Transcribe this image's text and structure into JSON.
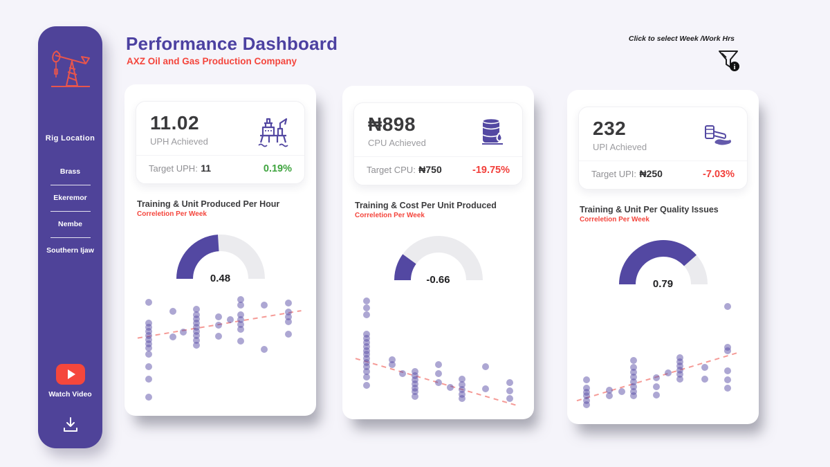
{
  "header": {
    "title": "Performance Dashboard",
    "subtitle": "AXZ Oil and Gas Production Company",
    "filter_hint": "Click to select Week /Work Hrs"
  },
  "sidebar": {
    "section_label": "Rig  Location",
    "items": [
      {
        "label": "Brass"
      },
      {
        "label": "Ekeremor"
      },
      {
        "label": "Nembe"
      },
      {
        "label": "Southern Ijaw"
      }
    ],
    "watch_video_label": "Watch Video"
  },
  "colors": {
    "sidebar_purple": "#4F4399",
    "title_purple": "#4C41A1",
    "accent_red": "#F4453C",
    "gauge_purple": "#5348A2",
    "gauge_track": "#EBEBEE",
    "green": "#3FA43F",
    "delta_red": "#F23F3A",
    "dot_purple": "rgba(91,80,168,0.5)",
    "trend_pink": "#F59A96"
  },
  "cards": [
    {
      "value": "11.02",
      "value_label": "UPH Achieved",
      "icon": "oil-platform-icon",
      "target_label": "Target UPH:",
      "target_value": "11",
      "delta": "0.19%",
      "delta_color": "#3FA43F"
    },
    {
      "value": "₦898",
      "value_label": "CPU Achieved",
      "icon": "oil-barrel-drop-icon",
      "target_label": "Target CPU:",
      "target_value": "₦750",
      "delta": "-19.75%",
      "delta_color": "#F23F3A"
    },
    {
      "value": "232",
      "value_label": "UPI Achieved",
      "icon": "oil-spill-barrel-icon",
      "target_label": "Target UPI:",
      "target_value": "₦250",
      "delta": "-7.03%",
      "delta_color": "#F23F3A"
    }
  ],
  "chart_data": [
    {
      "type": "scatter",
      "title": "Training & Unit Produced Per Hour",
      "subtitle": "Correletion Per Week",
      "gauge": {
        "correlation": 0.48,
        "label": "0.48",
        "fill_fraction": 0.48,
        "range": [
          -1,
          1
        ]
      },
      "xlabel": "",
      "ylabel": "",
      "axes_hidden": true,
      "trend_direction": "rising",
      "trend_pct": [
        [
          2,
          37
        ],
        [
          97,
          14
        ]
      ],
      "points_pct": [
        [
          8.6,
          6.9
        ],
        [
          8.6,
          24.6
        ],
        [
          8.6,
          28
        ],
        [
          8.6,
          31.4
        ],
        [
          8.6,
          34.9
        ],
        [
          8.6,
          38.3
        ],
        [
          8.6,
          41.7
        ],
        [
          8.6,
          45.1
        ],
        [
          8.6,
          50.3
        ],
        [
          8.6,
          61.1
        ],
        [
          8.6,
          71.4
        ],
        [
          8.6,
          86.9
        ],
        [
          22.4,
          14.3
        ],
        [
          22.4,
          36
        ],
        [
          28.6,
          32
        ],
        [
          36.1,
          12.6
        ],
        [
          36.1,
          17.7
        ],
        [
          36.1,
          21.1
        ],
        [
          36.1,
          24.6
        ],
        [
          36.1,
          28
        ],
        [
          36.1,
          31.4
        ],
        [
          36.1,
          34.9
        ],
        [
          36.1,
          38.9
        ],
        [
          36.1,
          42.9
        ],
        [
          49,
          18.9
        ],
        [
          49,
          26.3
        ],
        [
          49,
          35.4
        ],
        [
          55.7,
          21.7
        ],
        [
          62,
          4.6
        ],
        [
          62,
          9.1
        ],
        [
          62,
          17.7
        ],
        [
          62,
          21.7
        ],
        [
          62,
          25.7
        ],
        [
          62,
          29.7
        ],
        [
          62,
          39.4
        ],
        [
          75.7,
          9.1
        ],
        [
          75.7,
          46.3
        ],
        [
          89.4,
          7.4
        ],
        [
          89.4,
          15.4
        ],
        [
          89.4,
          19.4
        ],
        [
          89.4,
          23.4
        ],
        [
          89.4,
          33.7
        ]
      ]
    },
    {
      "type": "scatter",
      "title": "Training & Cost Per Unit Produced",
      "subtitle": "Correletion Per Week",
      "gauge": {
        "correlation": -0.66,
        "label": "-0.66",
        "fill_fraction": 0.2,
        "range": [
          -1,
          1
        ]
      },
      "xlabel": "",
      "ylabel": "",
      "axes_hidden": true,
      "trend_direction": "falling",
      "trend_pct": [
        [
          2,
          53
        ],
        [
          97,
          93
        ]
      ],
      "points_pct": [
        [
          8.6,
          4.6
        ],
        [
          8.6,
          10.3
        ],
        [
          8.6,
          16
        ],
        [
          8.6,
          32.6
        ],
        [
          8.6,
          36
        ],
        [
          8.6,
          39.4
        ],
        [
          8.6,
          42.9
        ],
        [
          8.6,
          46.3
        ],
        [
          8.6,
          49.7
        ],
        [
          8.6,
          53.1
        ],
        [
          8.6,
          56.6
        ],
        [
          8.6,
          60
        ],
        [
          8.6,
          64
        ],
        [
          8.6,
          68.6
        ],
        [
          8.6,
          75.4
        ],
        [
          23.1,
          54.3
        ],
        [
          23.1,
          58.3
        ],
        [
          29.4,
          65.7
        ],
        [
          36.5,
          64
        ],
        [
          36.5,
          67.4
        ],
        [
          36.5,
          70.9
        ],
        [
          36.5,
          74.3
        ],
        [
          36.5,
          77.7
        ],
        [
          36.5,
          81.1
        ],
        [
          36.5,
          85.1
        ],
        [
          50.2,
          58.3
        ],
        [
          50.2,
          65.7
        ],
        [
          50.2,
          73.1
        ],
        [
          56.9,
          77.1
        ],
        [
          63.9,
          70.3
        ],
        [
          63.9,
          74.9
        ],
        [
          63.9,
          78.9
        ],
        [
          63.9,
          82.9
        ],
        [
          63.9,
          86.9
        ],
        [
          77.6,
          60
        ],
        [
          77.6,
          78.3
        ],
        [
          91.4,
          73.1
        ],
        [
          91.4,
          80
        ],
        [
          91.4,
          86.9
        ]
      ]
    },
    {
      "type": "scatter",
      "title": "Training & Unit Per Quality Issues",
      "subtitle": "Correletion Per Week",
      "gauge": {
        "correlation": 0.79,
        "label": "0.79",
        "fill_fraction": 0.77,
        "range": [
          -1,
          1
        ]
      },
      "xlabel": "",
      "ylabel": "",
      "axes_hidden": true,
      "trend_direction": "rising",
      "trend_pct": [
        [
          0,
          85
        ],
        [
          95,
          44
        ]
      ],
      "points_pct": [
        [
          5.5,
          67.4
        ],
        [
          5.5,
          74.3
        ],
        [
          5.5,
          77.7
        ],
        [
          5.5,
          81.1
        ],
        [
          5.5,
          84.6
        ],
        [
          5.5,
          88.6
        ],
        [
          18.8,
          76
        ],
        [
          18.8,
          80.6
        ],
        [
          26.3,
          77.1
        ],
        [
          32.9,
          51.4
        ],
        [
          32.9,
          57.1
        ],
        [
          32.9,
          61.1
        ],
        [
          32.9,
          65.1
        ],
        [
          32.9,
          69.1
        ],
        [
          32.9,
          73.1
        ],
        [
          32.9,
          77.1
        ],
        [
          32.9,
          81.1
        ],
        [
          46.3,
          65.7
        ],
        [
          46.3,
          73.1
        ],
        [
          46.3,
          80
        ],
        [
          52.9,
          61.7
        ],
        [
          60,
          48.6
        ],
        [
          60,
          52.6
        ],
        [
          60,
          56
        ],
        [
          60,
          59.4
        ],
        [
          60,
          62.9
        ],
        [
          60,
          66.9
        ],
        [
          74.1,
          57.1
        ],
        [
          74.1,
          66.9
        ],
        [
          87.5,
          5.7
        ],
        [
          87.5,
          40
        ],
        [
          87.5,
          42.9
        ],
        [
          87.5,
          60
        ],
        [
          87.5,
          67.4
        ],
        [
          87.5,
          74.3
        ]
      ]
    }
  ]
}
